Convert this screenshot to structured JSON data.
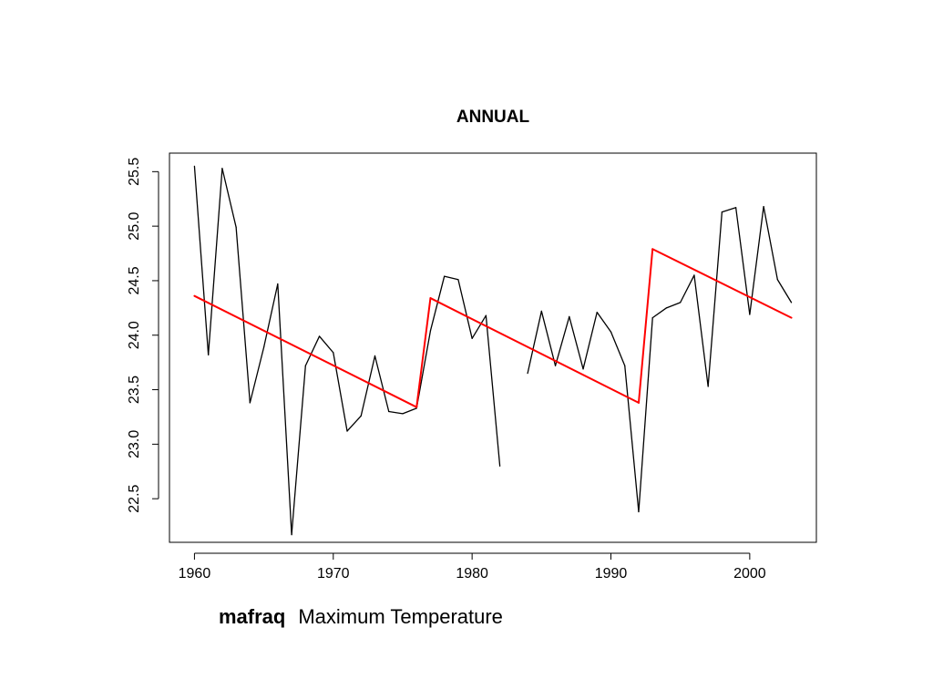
{
  "caption": {
    "station": "mafraq",
    "variable": "Maximum Temperature"
  },
  "chart_data": {
    "type": "line",
    "title": "ANNUAL",
    "xlabel": "",
    "ylabel": "",
    "xlim": [
      1958.2,
      2004.8
    ],
    "ylim": [
      22.1,
      25.67
    ],
    "xticks": [
      1960,
      1970,
      1980,
      1990,
      2000
    ],
    "yticks": [
      22.5,
      23.0,
      23.5,
      24.0,
      24.5,
      25.0,
      25.5
    ],
    "grid": false,
    "series": [
      {
        "color": "#000000",
        "style": "solid",
        "points": [
          [
            1960,
            25.55
          ],
          [
            1961,
            23.82
          ],
          [
            1962,
            25.53
          ],
          [
            1963,
            24.99
          ],
          [
            1964,
            23.38
          ],
          [
            1965,
            23.89
          ],
          [
            1966,
            24.47
          ],
          [
            1967,
            22.17
          ],
          [
            1968,
            23.72
          ],
          [
            1969,
            23.99
          ],
          [
            1970,
            23.84
          ],
          [
            1971,
            23.12
          ],
          [
            1972,
            23.26
          ],
          [
            1973,
            23.81
          ],
          [
            1974,
            23.3
          ],
          [
            1975,
            23.28
          ],
          [
            1976,
            23.33
          ],
          [
            1977,
            24.04
          ],
          [
            1978,
            24.54
          ],
          [
            1979,
            24.51
          ],
          [
            1980,
            23.97
          ],
          [
            1981,
            24.18
          ],
          [
            1982,
            22.8
          ],
          [
            1983,
            null
          ],
          [
            1984,
            23.65
          ],
          [
            1985,
            24.22
          ],
          [
            1986,
            23.72
          ],
          [
            1987,
            24.17
          ],
          [
            1988,
            23.69
          ],
          [
            1989,
            24.21
          ],
          [
            1990,
            24.03
          ],
          [
            1991,
            23.72
          ],
          [
            1992,
            22.38
          ],
          [
            1993,
            24.16
          ],
          [
            1994,
            24.25
          ],
          [
            1995,
            24.3
          ],
          [
            1996,
            24.55
          ],
          [
            1997,
            23.53
          ],
          [
            1998,
            25.13
          ],
          [
            1999,
            25.17
          ],
          [
            2000,
            24.19
          ],
          [
            2001,
            25.18
          ],
          [
            2002,
            24.51
          ],
          [
            2003,
            24.3
          ]
        ]
      },
      {
        "color": "#ff0000",
        "style": "solid",
        "points": [
          [
            1960,
            24.36
          ],
          [
            1976,
            23.34
          ],
          [
            1977,
            24.34
          ],
          [
            1992,
            23.38
          ],
          [
            1993,
            24.79
          ],
          [
            2003,
            24.16
          ]
        ]
      }
    ]
  }
}
